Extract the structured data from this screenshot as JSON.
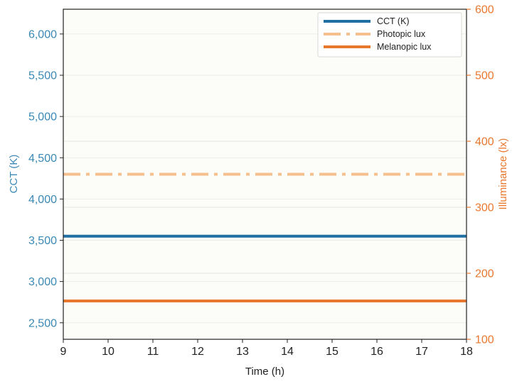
{
  "chart_data": {
    "type": "line",
    "title": "",
    "xlabel": "Time (h)",
    "ylabel_left": "CCT (K)",
    "ylabel_right": "Illuminance (lx)",
    "x_ticks": [
      "9",
      "10",
      "11",
      "12",
      "13",
      "14",
      "15",
      "16",
      "17",
      "18"
    ],
    "xlim": [
      9,
      18
    ],
    "ylim_left": [
      2300,
      6300
    ],
    "ylim_right": [
      100,
      600
    ],
    "y_ticks_left": [
      "2,500",
      "3,000",
      "3,500",
      "4,000",
      "4,500",
      "5,000",
      "5,500",
      "6,000"
    ],
    "y_ticks_left_values": [
      2500,
      3000,
      3500,
      4000,
      4500,
      5000,
      5500,
      6000
    ],
    "y_ticks_right": [
      "100",
      "200",
      "300",
      "400",
      "500",
      "600"
    ],
    "y_ticks_right_values": [
      100,
      200,
      300,
      400,
      500,
      600
    ],
    "grid": true,
    "legend_position": "top-right",
    "series": [
      {
        "name": "CCT (K)",
        "axis": "left",
        "style": "solid",
        "color": "#1f6fa3",
        "x": [
          9,
          18
        ],
        "y": [
          3550,
          3550
        ]
      },
      {
        "name": "Photopic lux",
        "axis": "right",
        "style": "dashdot",
        "color": "#f5c08e",
        "x": [
          9,
          18
        ],
        "y": [
          350,
          350
        ]
      },
      {
        "name": "Melanopic lux",
        "axis": "right",
        "style": "solid",
        "color": "#e9782f",
        "x": [
          9,
          18
        ],
        "y": [
          158,
          158
        ]
      }
    ],
    "colors": {
      "left_axis": "#3a88b5",
      "right_axis": "#e9782f",
      "plot_bg": "#fcfcf8"
    }
  }
}
